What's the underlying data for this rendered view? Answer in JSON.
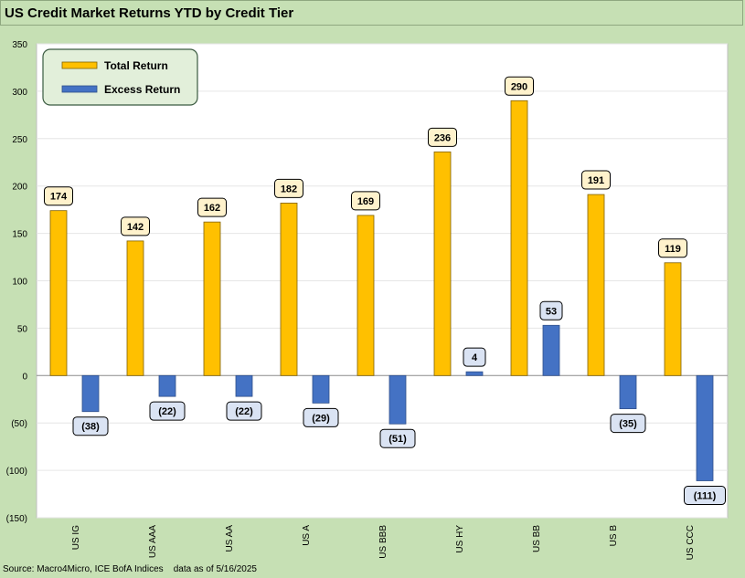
{
  "title": "US Credit Market Returns YTD by Credit Tier",
  "source": "Source: Macro4Micro, ICE BofA Indices",
  "data_as_of": "data as of 5/16/2025",
  "colors": {
    "total_return": "#ffc000",
    "excess_return": "#4472c4",
    "background": "#c6e0b4",
    "plot_background": "#ffffff",
    "legend_background": "#e2efda"
  },
  "chart_data": {
    "type": "bar",
    "title": "US Credit Market Returns YTD by Credit Tier",
    "categories": [
      "US IG",
      "US AAA",
      "US AA",
      "US A",
      "US BBB",
      "US HY",
      "US BB",
      "US B",
      "US CCC"
    ],
    "series": [
      {
        "name": "Total Return",
        "values": [
          174,
          142,
          162,
          182,
          169,
          236,
          290,
          191,
          119
        ],
        "color": "#ffc000"
      },
      {
        "name": "Excess Return",
        "values": [
          -38,
          -22,
          -22,
          -29,
          -51,
          4,
          53,
          -35,
          -111
        ],
        "color": "#4472c4"
      }
    ],
    "total_labels": [
      "174",
      "142",
      "162",
      "182",
      "169",
      "236",
      "290",
      "191",
      "119"
    ],
    "excess_labels": [
      "(38)",
      "(22)",
      "(22)",
      "(29)",
      "(51)",
      "4",
      "53",
      "(35)",
      "(111)"
    ],
    "yticks": [
      "350",
      "300",
      "250",
      "200",
      "150",
      "100",
      "50",
      "0",
      "(50)",
      "(100)",
      "(150)"
    ],
    "ylim": [
      -150,
      350
    ],
    "xlabel": "",
    "ylabel": "",
    "grid": true,
    "legend_position": "top-left"
  }
}
